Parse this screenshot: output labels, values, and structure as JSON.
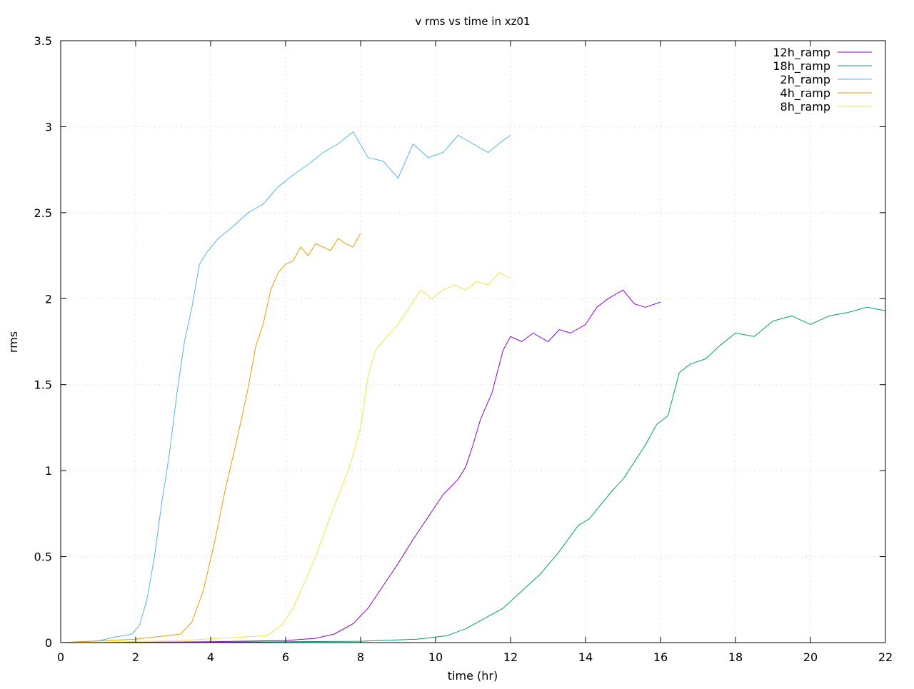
{
  "chart_data": {
    "type": "line",
    "title": "v rms vs time in xz01",
    "xlabel": "time (hr)",
    "ylabel": "rms",
    "xlim": [
      0,
      22
    ],
    "ylim": [
      0,
      3.5
    ],
    "xticks": [
      "0",
      "2",
      "4",
      "6",
      "8",
      "10",
      "12",
      "14",
      "16",
      "18",
      "20",
      "22"
    ],
    "yticks": [
      "0",
      "0.5",
      "1",
      "1.5",
      "2",
      "2.5",
      "3",
      "3.5"
    ],
    "grid": true,
    "legend_position": "top-right",
    "series": [
      {
        "name": "12h_ramp",
        "color": "#9400d3",
        "x": [
          0,
          2,
          4,
          6,
          6.8,
          7.3,
          7.8,
          8.2,
          8.6,
          9.0,
          9.4,
          9.8,
          10.2,
          10.6,
          10.8,
          11.0,
          11.2,
          11.5,
          11.8,
          12.0,
          12.3,
          12.6,
          13.0,
          13.3,
          13.6,
          14.0,
          14.3,
          14.6,
          15.0,
          15.3,
          15.6,
          16.0
        ],
        "y": [
          0,
          0.002,
          0.005,
          0.012,
          0.025,
          0.05,
          0.11,
          0.2,
          0.33,
          0.46,
          0.6,
          0.73,
          0.86,
          0.95,
          1.02,
          1.15,
          1.3,
          1.45,
          1.7,
          1.78,
          1.75,
          1.8,
          1.75,
          1.82,
          1.8,
          1.85,
          1.95,
          2.0,
          2.05,
          1.97,
          1.95,
          1.98
        ]
      },
      {
        "name": "18h_ramp",
        "color": "#009e73",
        "x": [
          0,
          4,
          8,
          9.5,
          10.3,
          10.8,
          11.3,
          11.8,
          12.3,
          12.8,
          13.3,
          13.8,
          14.1,
          14.4,
          14.7,
          15.0,
          15.3,
          15.6,
          15.9,
          16.2,
          16.5,
          16.8,
          17.2,
          17.6,
          18.0,
          18.5,
          19.0,
          19.5,
          20.0,
          20.5,
          21.0,
          21.5,
          22.0
        ],
        "y": [
          0,
          0.002,
          0.008,
          0.02,
          0.04,
          0.08,
          0.14,
          0.2,
          0.3,
          0.4,
          0.53,
          0.68,
          0.72,
          0.8,
          0.88,
          0.95,
          1.05,
          1.15,
          1.27,
          1.32,
          1.57,
          1.62,
          1.65,
          1.73,
          1.8,
          1.78,
          1.87,
          1.9,
          1.85,
          1.9,
          1.92,
          1.95,
          1.93
        ]
      },
      {
        "name": "2h_ramp",
        "color": "#56b4e9",
        "x": [
          0,
          1.0,
          1.5,
          1.9,
          2.1,
          2.3,
          2.5,
          2.7,
          2.9,
          3.1,
          3.3,
          3.5,
          3.7,
          3.9,
          4.2,
          4.6,
          5.0,
          5.4,
          5.8,
          6.2,
          6.6,
          7.0,
          7.4,
          7.8,
          8.2,
          8.6,
          9.0,
          9.4,
          9.8,
          10.2,
          10.6,
          11.0,
          11.4,
          11.8,
          12.0
        ],
        "y": [
          0,
          0.01,
          0.035,
          0.05,
          0.1,
          0.25,
          0.5,
          0.82,
          1.1,
          1.45,
          1.75,
          1.95,
          2.2,
          2.27,
          2.35,
          2.42,
          2.5,
          2.55,
          2.65,
          2.72,
          2.78,
          2.85,
          2.9,
          2.97,
          2.82,
          2.8,
          2.7,
          2.9,
          2.82,
          2.85,
          2.95,
          2.9,
          2.85,
          2.92,
          2.95
        ]
      },
      {
        "name": "4h_ramp",
        "color": "#e69f00",
        "x": [
          0,
          2,
          3.2,
          3.5,
          3.8,
          4.1,
          4.4,
          4.7,
          5.0,
          5.2,
          5.4,
          5.6,
          5.8,
          6.0,
          6.2,
          6.4,
          6.6,
          6.8,
          7.0,
          7.2,
          7.4,
          7.6,
          7.8,
          8.0
        ],
        "y": [
          0,
          0.02,
          0.05,
          0.12,
          0.3,
          0.58,
          0.9,
          1.18,
          1.48,
          1.72,
          1.85,
          2.05,
          2.15,
          2.2,
          2.22,
          2.3,
          2.25,
          2.32,
          2.3,
          2.28,
          2.35,
          2.32,
          2.3,
          2.38
        ]
      },
      {
        "name": "8h_ramp",
        "color": "#f0e442",
        "x": [
          0,
          3,
          5.5,
          5.9,
          6.2,
          6.5,
          6.8,
          7.1,
          7.4,
          7.7,
          8.0,
          8.2,
          8.4,
          8.7,
          9.0,
          9.3,
          9.6,
          9.9,
          10.2,
          10.5,
          10.8,
          11.1,
          11.4,
          11.7,
          12.0
        ],
        "y": [
          0,
          0.01,
          0.04,
          0.1,
          0.2,
          0.35,
          0.5,
          0.68,
          0.85,
          1.02,
          1.25,
          1.55,
          1.7,
          1.78,
          1.85,
          1.95,
          2.05,
          2.0,
          2.05,
          2.08,
          2.05,
          2.1,
          2.08,
          2.15,
          2.12
        ]
      }
    ]
  }
}
